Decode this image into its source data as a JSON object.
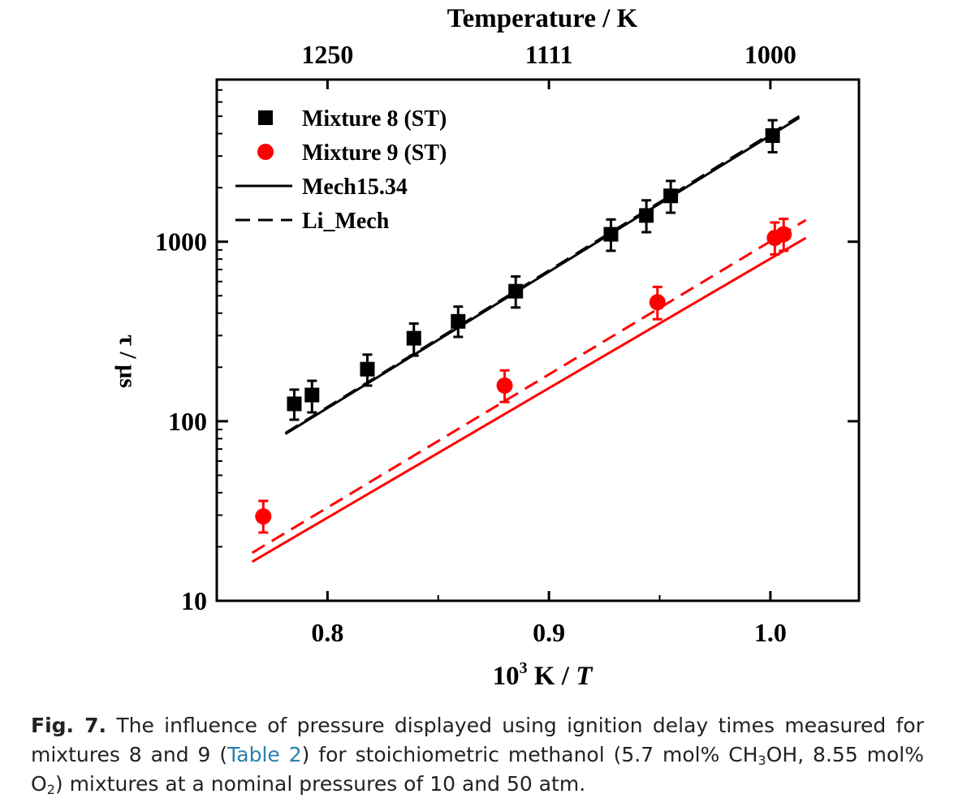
{
  "chart_data": {
    "type": "scatter",
    "title": "",
    "top_axis_label": "Temperature / K",
    "top_ticks": [
      "1250",
      "1111",
      "1000"
    ],
    "top_tick_values": [
      0.8,
      0.9,
      1.0
    ],
    "xlabel_main": "10",
    "xlabel_sup": "3",
    "xlabel_rest": " K / ",
    "xlabel_italic": "T",
    "ylabel": "τ / μs",
    "xlim": [
      0.75,
      1.04
    ],
    "ylim": [
      10,
      8000
    ],
    "y_scale": "log",
    "x_ticks": [
      "0.8",
      "0.9",
      "1.0"
    ],
    "x_tick_values": [
      0.8,
      0.9,
      1.0
    ],
    "y_ticks": [
      "10",
      "100",
      "1000"
    ],
    "y_tick_values": [
      10,
      100,
      1000
    ],
    "legend_position": "top-left",
    "series": [
      {
        "name": "Mixture 8 (ST)",
        "kind": "points",
        "marker": "square",
        "color": "#000000",
        "points": [
          {
            "x": 0.785,
            "y": 125,
            "lo": 102,
            "hi": 150
          },
          {
            "x": 0.793,
            "y": 140,
            "lo": 112,
            "hi": 168
          },
          {
            "x": 0.818,
            "y": 195,
            "lo": 158,
            "hi": 235
          },
          {
            "x": 0.839,
            "y": 290,
            "lo": 232,
            "hi": 350
          },
          {
            "x": 0.859,
            "y": 360,
            "lo": 295,
            "hi": 435
          },
          {
            "x": 0.885,
            "y": 530,
            "lo": 430,
            "hi": 640
          },
          {
            "x": 0.928,
            "y": 1100,
            "lo": 890,
            "hi": 1330
          },
          {
            "x": 0.944,
            "y": 1400,
            "lo": 1130,
            "hi": 1700
          },
          {
            "x": 0.955,
            "y": 1800,
            "lo": 1450,
            "hi": 2180
          },
          {
            "x": 1.001,
            "y": 3900,
            "lo": 3150,
            "hi": 4750
          }
        ]
      },
      {
        "name": "Mixture 9 (ST)",
        "kind": "points",
        "marker": "circle",
        "color": "#ff0000",
        "points": [
          {
            "x": 0.771,
            "y": 29.5,
            "lo": 24,
            "hi": 36
          },
          {
            "x": 0.88,
            "y": 158,
            "lo": 128,
            "hi": 192
          },
          {
            "x": 0.949,
            "y": 460,
            "lo": 370,
            "hi": 560
          },
          {
            "x": 1.002,
            "y": 1050,
            "lo": 850,
            "hi": 1280
          },
          {
            "x": 1.006,
            "y": 1100,
            "lo": 890,
            "hi": 1340
          }
        ]
      },
      {
        "name": "Mech15.34",
        "kind": "line",
        "dash": "solid",
        "color": "#000000",
        "x": [
          0.781,
          1.013
        ],
        "y": [
          85,
          4900
        ]
      },
      {
        "name": "Li_Mech",
        "kind": "line",
        "dash": "dashed",
        "color": "#000000",
        "x": [
          0.781,
          1.013
        ],
        "y": [
          86,
          5000
        ]
      },
      {
        "name": "",
        "kind": "line",
        "dash": "solid",
        "color": "#ff0000",
        "x": [
          0.766,
          1.016
        ],
        "y": [
          16.5,
          1050
        ]
      },
      {
        "name": "",
        "kind": "line",
        "dash": "dashed",
        "color": "#ff0000",
        "x": [
          0.766,
          1.016
        ],
        "y": [
          18.5,
          1320
        ]
      }
    ]
  },
  "caption": {
    "label": "Fig. 7.",
    "text_before_link": " The influence of pressure displayed using ignition delay times measured for mixtures 8 and 9 (",
    "link_text": "Table 2",
    "text_after_link": ") for stoichiometric methanol (5.7 mol% CH",
    "sub1": "3",
    "text_mid": "OH, 8.55 mol% O",
    "sub2": "2",
    "text_end": ") mixtures at a nominal pressures of 10 and 50 atm."
  }
}
